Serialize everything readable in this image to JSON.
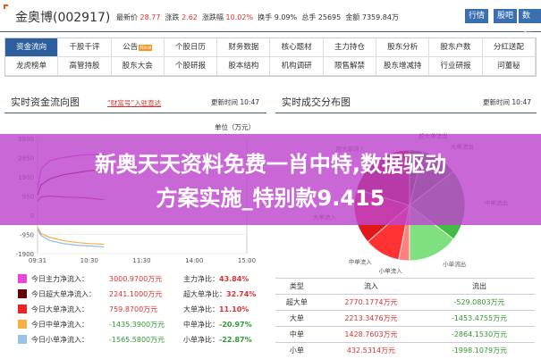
{
  "header": {
    "stock_name": "金奥博(002917)",
    "latest_label": "最新价",
    "latest": "28.77",
    "change_label": "涨跌",
    "change": "2.62",
    "pct_label": "涨跌幅",
    "pct": "10.02%",
    "turnover_label": "换手",
    "turnover": "9.09%",
    "volume_label": "总手",
    "volume": "25695",
    "amount_label": "金额",
    "amount": "7359.84万",
    "buttons": [
      "行情",
      "股吧",
      "数据"
    ]
  },
  "nav": {
    "row1": [
      "资金流向",
      "千股千评",
      "公告",
      "个股日历",
      "财务数据",
      "核心题材",
      "主力持仓",
      "股东分析",
      "股东户数",
      "分红送配"
    ],
    "new_badge": "New",
    "row2": [
      "龙虎榜单",
      "高管持股",
      "股东大会",
      "个股研报",
      "股本结构",
      "机构调研",
      "限售解禁",
      "股东增减持",
      "行业研报",
      "问董秘"
    ]
  },
  "flow_panel": {
    "title": "实时资金流向图",
    "link": "“财富号”入驻直达",
    "update_label": "更新时间",
    "update_time": "10:47",
    "unit": "单位（万元）"
  },
  "dist_panel": {
    "title": "实时成交分布图",
    "update_label": "更新时间",
    "update_time": "10:47"
  },
  "chart_data": [
    {
      "type": "line",
      "ylim": [
        -1900,
        3800
      ],
      "yticks": [
        "3800",
        "2850",
        "1900",
        "950",
        "0",
        "-950",
        "-1900"
      ],
      "xticks": [
        "09:31",
        "10:30",
        "11:30",
        "14:00",
        "15:00"
      ],
      "x": [
        "09:31",
        "09:35",
        "09:45",
        "10:00",
        "10:15",
        "10:30",
        "10:47"
      ],
      "series": [
        {
          "color": "#e040e0",
          "values": [
            1300,
            2300,
            2700,
            2850,
            2950,
            3000,
            3000
          ]
        },
        {
          "color": "#660010",
          "values": [
            1000,
            1500,
            1800,
            2000,
            2100,
            2200,
            2241
          ]
        },
        {
          "color": "#dd2222",
          "values": [
            700,
            900,
            950,
            900,
            880,
            850,
            760
          ]
        },
        {
          "color": "#f5b041",
          "values": [
            -600,
            -900,
            -1100,
            -1250,
            -1350,
            -1400,
            -1435
          ]
        },
        {
          "color": "#8fb8e8",
          "values": [
            -700,
            -1000,
            -1250,
            -1400,
            -1480,
            -1520,
            -1565
          ]
        }
      ]
    },
    {
      "type": "pie",
      "labels": [
        "小单流入",
        "中单流入",
        "大单流入",
        "超大单流入",
        "超大单流出",
        "大单流出",
        "中单流出",
        "小单流出"
      ],
      "values": [
        432.5314,
        1428.7603,
        2213.3476,
        2770.1774,
        529.0803,
        1453.4755,
        2864.153,
        1998.1079
      ],
      "colors": [
        "#ff8080",
        "#ff3333",
        "#e01818",
        "#990000",
        "#0b7a0b",
        "#2a9a2a",
        "#44bb44",
        "#80e080"
      ]
    }
  ],
  "legend": [
    {
      "label": "今日主力净流入：",
      "value": "3000.9700万元",
      "ratio_label": "主力净比：",
      "ratio": "43.84%",
      "color": "#ee44dd",
      "pos": true
    },
    {
      "label": "今日超大单净流入：",
      "value": "2241.1000万元",
      "ratio_label": "超大单净比：",
      "ratio": "32.74%",
      "color": "#660000",
      "pos": true
    },
    {
      "label": "今日大单净流入：",
      "value": "759.8700万元",
      "ratio_label": "大单净比：",
      "ratio": "11.10%",
      "color": "#ee2222",
      "pos": true
    },
    {
      "label": "今日中单净流入：",
      "value": "-1435.3900万元",
      "ratio_label": "中单净比：",
      "ratio": "-20.97%",
      "color": "#f5b041",
      "pos": false
    },
    {
      "label": "今日小单净流入：",
      "value": "-1565.5800万元",
      "ratio_label": "小单净比：",
      "ratio": "-22.87%",
      "color": "#99c2ea",
      "pos": false
    }
  ],
  "table": {
    "headers": [
      "类型",
      "流入",
      "流出"
    ],
    "rows": [
      [
        "超大单",
        "2770.1774万元",
        "-529.0803万元"
      ],
      [
        "大单",
        "2213.3476万元",
        "-1453.4755万元"
      ],
      [
        "中单",
        "1428.7603万元",
        "-2864.1530万元"
      ],
      [
        "小单",
        "432.5314万元",
        "-1998.1079万元"
      ]
    ]
  },
  "banner": {
    "line1": "新奥天天资料免费一肖中特,数据驱动",
    "line2": "方案实施_特别款9.415"
  }
}
